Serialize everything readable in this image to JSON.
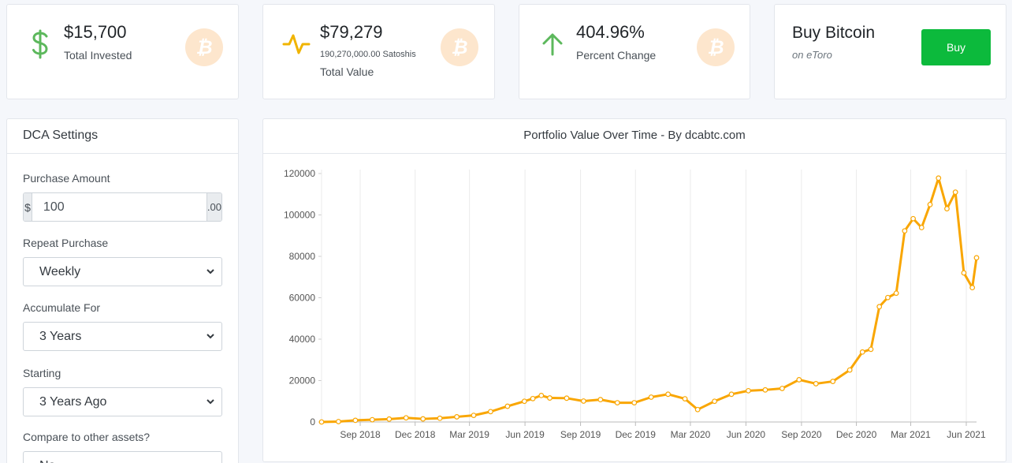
{
  "stats": [
    {
      "value": "$15,700",
      "label": "Total Invested",
      "icon": "dollar-icon",
      "color": "#5cb85c"
    },
    {
      "value": "$79,279",
      "sub": "190,270,000.00 Satoshis",
      "label": "Total Value",
      "icon": "activity-icon",
      "color": "#f0b400"
    },
    {
      "value": "404.96%",
      "label": "Percent Change",
      "icon": "arrow-up-icon",
      "color": "#5cb85c"
    }
  ],
  "buy": {
    "title": "Buy Bitcoin",
    "subtitle": "on eToro",
    "button": "Buy"
  },
  "settings": {
    "title": "DCA Settings",
    "amount_label": "Purchase Amount",
    "amount_prefix": "$",
    "amount_value": "100",
    "amount_suffix": ".00",
    "repeat_label": "Repeat Purchase",
    "repeat_value": "Weekly",
    "accumulate_label": "Accumulate For",
    "accumulate_value": "3 Years",
    "starting_label": "Starting",
    "starting_value": "3 Years Ago",
    "compare_label": "Compare to other assets?",
    "compare_value": "No"
  },
  "colors": {
    "accent": "#f9a602",
    "buy_button": "#0cba3c",
    "coin": "#fde6cd"
  },
  "chart_data": {
    "type": "line",
    "title": "Portfolio Value Over Time - By dcabtc.com",
    "ylim": [
      0,
      120000
    ],
    "yticks": [
      "0",
      "20000",
      "40000",
      "60000",
      "80000",
      "100000",
      "120000"
    ],
    "xticks": [
      "Sep 2018",
      "Dec 2018",
      "Mar 2019",
      "Jun 2019",
      "Sep 2019",
      "Dec 2019",
      "Mar 2020",
      "Jun 2020",
      "Sep 2020",
      "Dec 2020",
      "Mar 2021",
      "Jun 2021"
    ],
    "x_start": "2018-06-29",
    "x_end": "2021-06-18",
    "series": [
      {
        "color": "#f9a602",
        "x": [
          "2018-06-29",
          "2018-07-27",
          "2018-08-24",
          "2018-09-21",
          "2018-10-19",
          "2018-11-16",
          "2018-12-14",
          "2019-01-11",
          "2019-02-08",
          "2019-03-08",
          "2019-04-05",
          "2019-05-03",
          "2019-05-31",
          "2019-06-14",
          "2019-06-28",
          "2019-07-12",
          "2019-08-09",
          "2019-09-06",
          "2019-10-04",
          "2019-11-01",
          "2019-11-29",
          "2019-12-27",
          "2020-01-24",
          "2020-02-21",
          "2020-03-13",
          "2020-04-10",
          "2020-05-08",
          "2020-06-05",
          "2020-07-03",
          "2020-07-31",
          "2020-08-28",
          "2020-09-25",
          "2020-10-23",
          "2020-11-20",
          "2020-12-11",
          "2020-12-25",
          "2021-01-08",
          "2021-01-22",
          "2021-02-05",
          "2021-02-19",
          "2021-03-05",
          "2021-03-19",
          "2021-04-02",
          "2021-04-16",
          "2021-04-30",
          "2021-05-14",
          "2021-05-28",
          "2021-06-11",
          "2021-06-18"
        ],
        "y": [
          0,
          200,
          800,
          1100,
          1400,
          2000,
          1500,
          1800,
          2500,
          3200,
          5000,
          7600,
          10000,
          11300,
          12800,
          11600,
          11500,
          10100,
          10800,
          9300,
          9300,
          12000,
          13400,
          11200,
          6000,
          10000,
          13400,
          15100,
          15500,
          16200,
          20400,
          18500,
          19600,
          25100,
          33800,
          35100,
          55700,
          60100,
          62200,
          92300,
          98200,
          93900,
          105000,
          117800,
          103000,
          111000,
          72000,
          64900,
          79300
        ]
      }
    ]
  }
}
